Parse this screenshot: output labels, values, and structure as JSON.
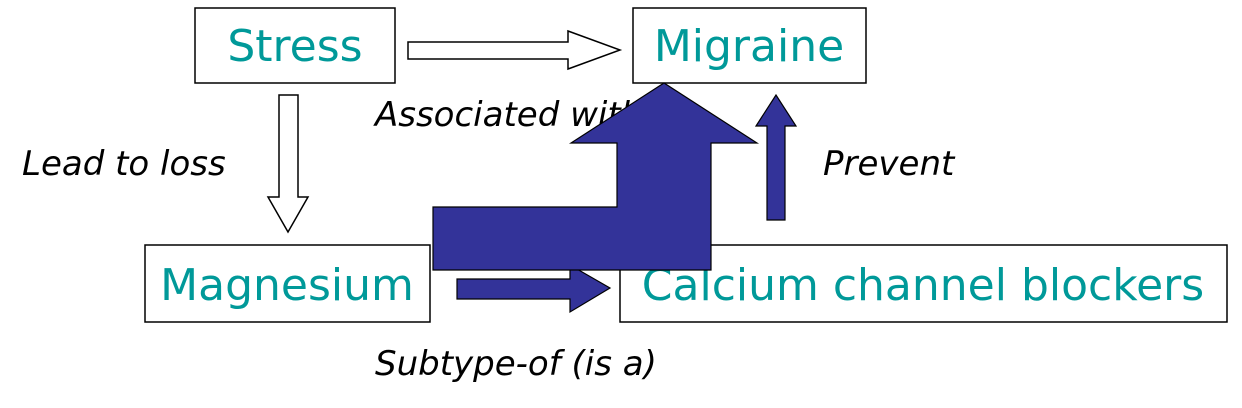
{
  "colors": {
    "node_text": "#009999",
    "solid_arrow": "#333399",
    "big_arrow": "#333399"
  },
  "nodes": {
    "stress": "Stress",
    "migraine": "Migraine",
    "magnesium": "Magnesium",
    "calcium_channel_blockers": "Calcium channel blockers"
  },
  "edges": {
    "associated_with": "Associated with",
    "lead_to_loss": "Lead to loss",
    "prevent": "Prevent",
    "subtype_of": "Subtype-of (is a)"
  }
}
